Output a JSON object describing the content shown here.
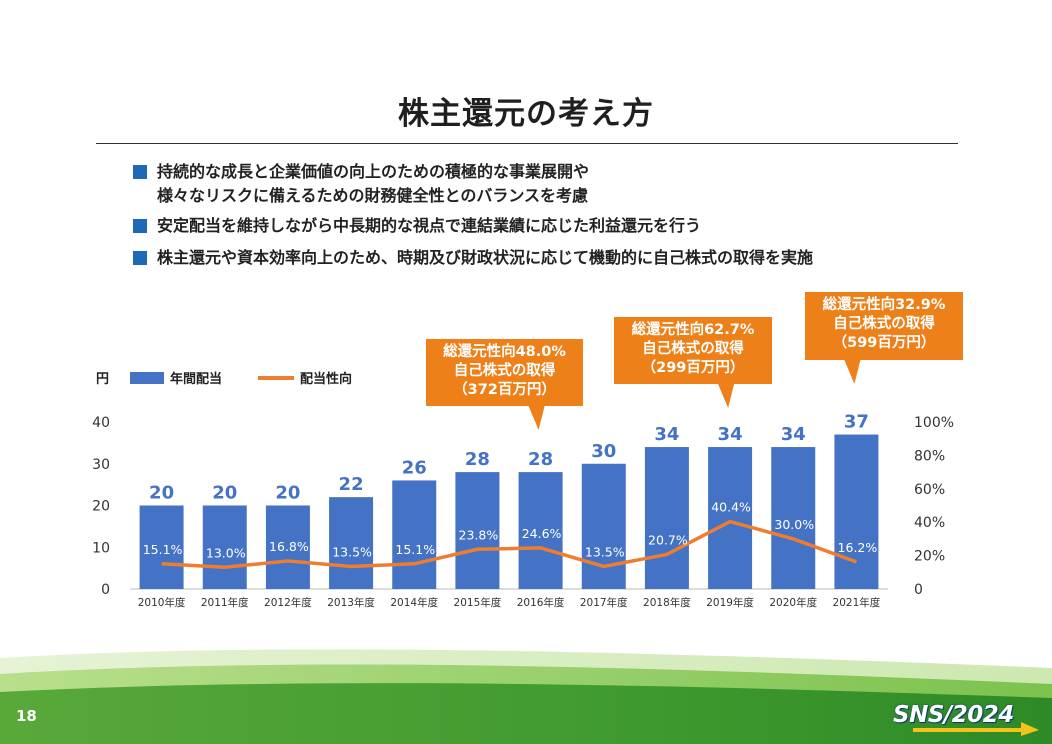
{
  "slide": {
    "title": "株主還元の考え方",
    "page_number": "18",
    "logo_text": "SNS/2024"
  },
  "bullets": [
    {
      "lines": [
        "持続的な成長と企業価値の向上のための積極的な事業展開や",
        "様々なリスクに備えるための財務健全性とのバランスを考慮"
      ]
    },
    {
      "lines": [
        "安定配当を維持しながら中長期的な視点で連結業績に応じた利益還元を行う"
      ]
    },
    {
      "lines": [
        "株主還元や資本効率向上のため、時期及び財政状況に応じて機動的に自己株式の取得を実施"
      ]
    }
  ],
  "callouts": [
    {
      "year": "2016年度",
      "lines": [
        "総還元性向48.0%",
        "自己株式の取得",
        "（372百万円）"
      ]
    },
    {
      "year": "2019年度",
      "lines": [
        "総還元性向62.7%",
        "自己株式の取得",
        "（299百万円）"
      ]
    },
    {
      "year": "2021年度",
      "lines": [
        "総還元性向32.9%",
        "自己株式の取得",
        "（599百万円）"
      ]
    }
  ],
  "colors": {
    "bar": "#4472c4",
    "line": "#ed7d31",
    "accent_blue": "#1c69b8",
    "callout": "#ed8019",
    "footer_green_dark": "#2f8f2f",
    "footer_green_light": "#9fd16a"
  },
  "chart_data": {
    "type": "bar",
    "categories": [
      "2010年度",
      "2011年度",
      "2012年度",
      "2013年度",
      "2014年度",
      "2015年度",
      "2016年度",
      "2017年度",
      "2018年度",
      "2019年度",
      "2020年度",
      "2021年度"
    ],
    "series": [
      {
        "name": "年間配当",
        "type": "bar",
        "axis": "left",
        "values": [
          20,
          20,
          20,
          22,
          26,
          28,
          28,
          30,
          34,
          34,
          34,
          37
        ],
        "labels": [
          "20",
          "20",
          "20",
          "22",
          "26",
          "28",
          "28",
          "30",
          "34",
          "34",
          "34",
          "37"
        ]
      },
      {
        "name": "配当性向",
        "type": "line",
        "axis": "right",
        "values": [
          15.1,
          13.0,
          16.8,
          13.5,
          15.1,
          23.8,
          24.6,
          13.5,
          20.7,
          40.4,
          30.0,
          16.2
        ],
        "labels": [
          "15.1%",
          "13.0%",
          "16.8%",
          "13.5%",
          "15.1%",
          "23.8%",
          "24.6%",
          "13.5%",
          "20.7%",
          "40.4%",
          "30.0%",
          "16.2%"
        ]
      }
    ],
    "ylabel": "円",
    "ylim": [
      0,
      40
    ],
    "yticks": [
      "0",
      "10",
      "20",
      "30",
      "40"
    ],
    "y2lim": [
      0,
      100
    ],
    "y2ticks": [
      "0",
      "20%",
      "40%",
      "60%",
      "80%",
      "100%"
    ],
    "legend_position": "top-left",
    "grid": false
  }
}
